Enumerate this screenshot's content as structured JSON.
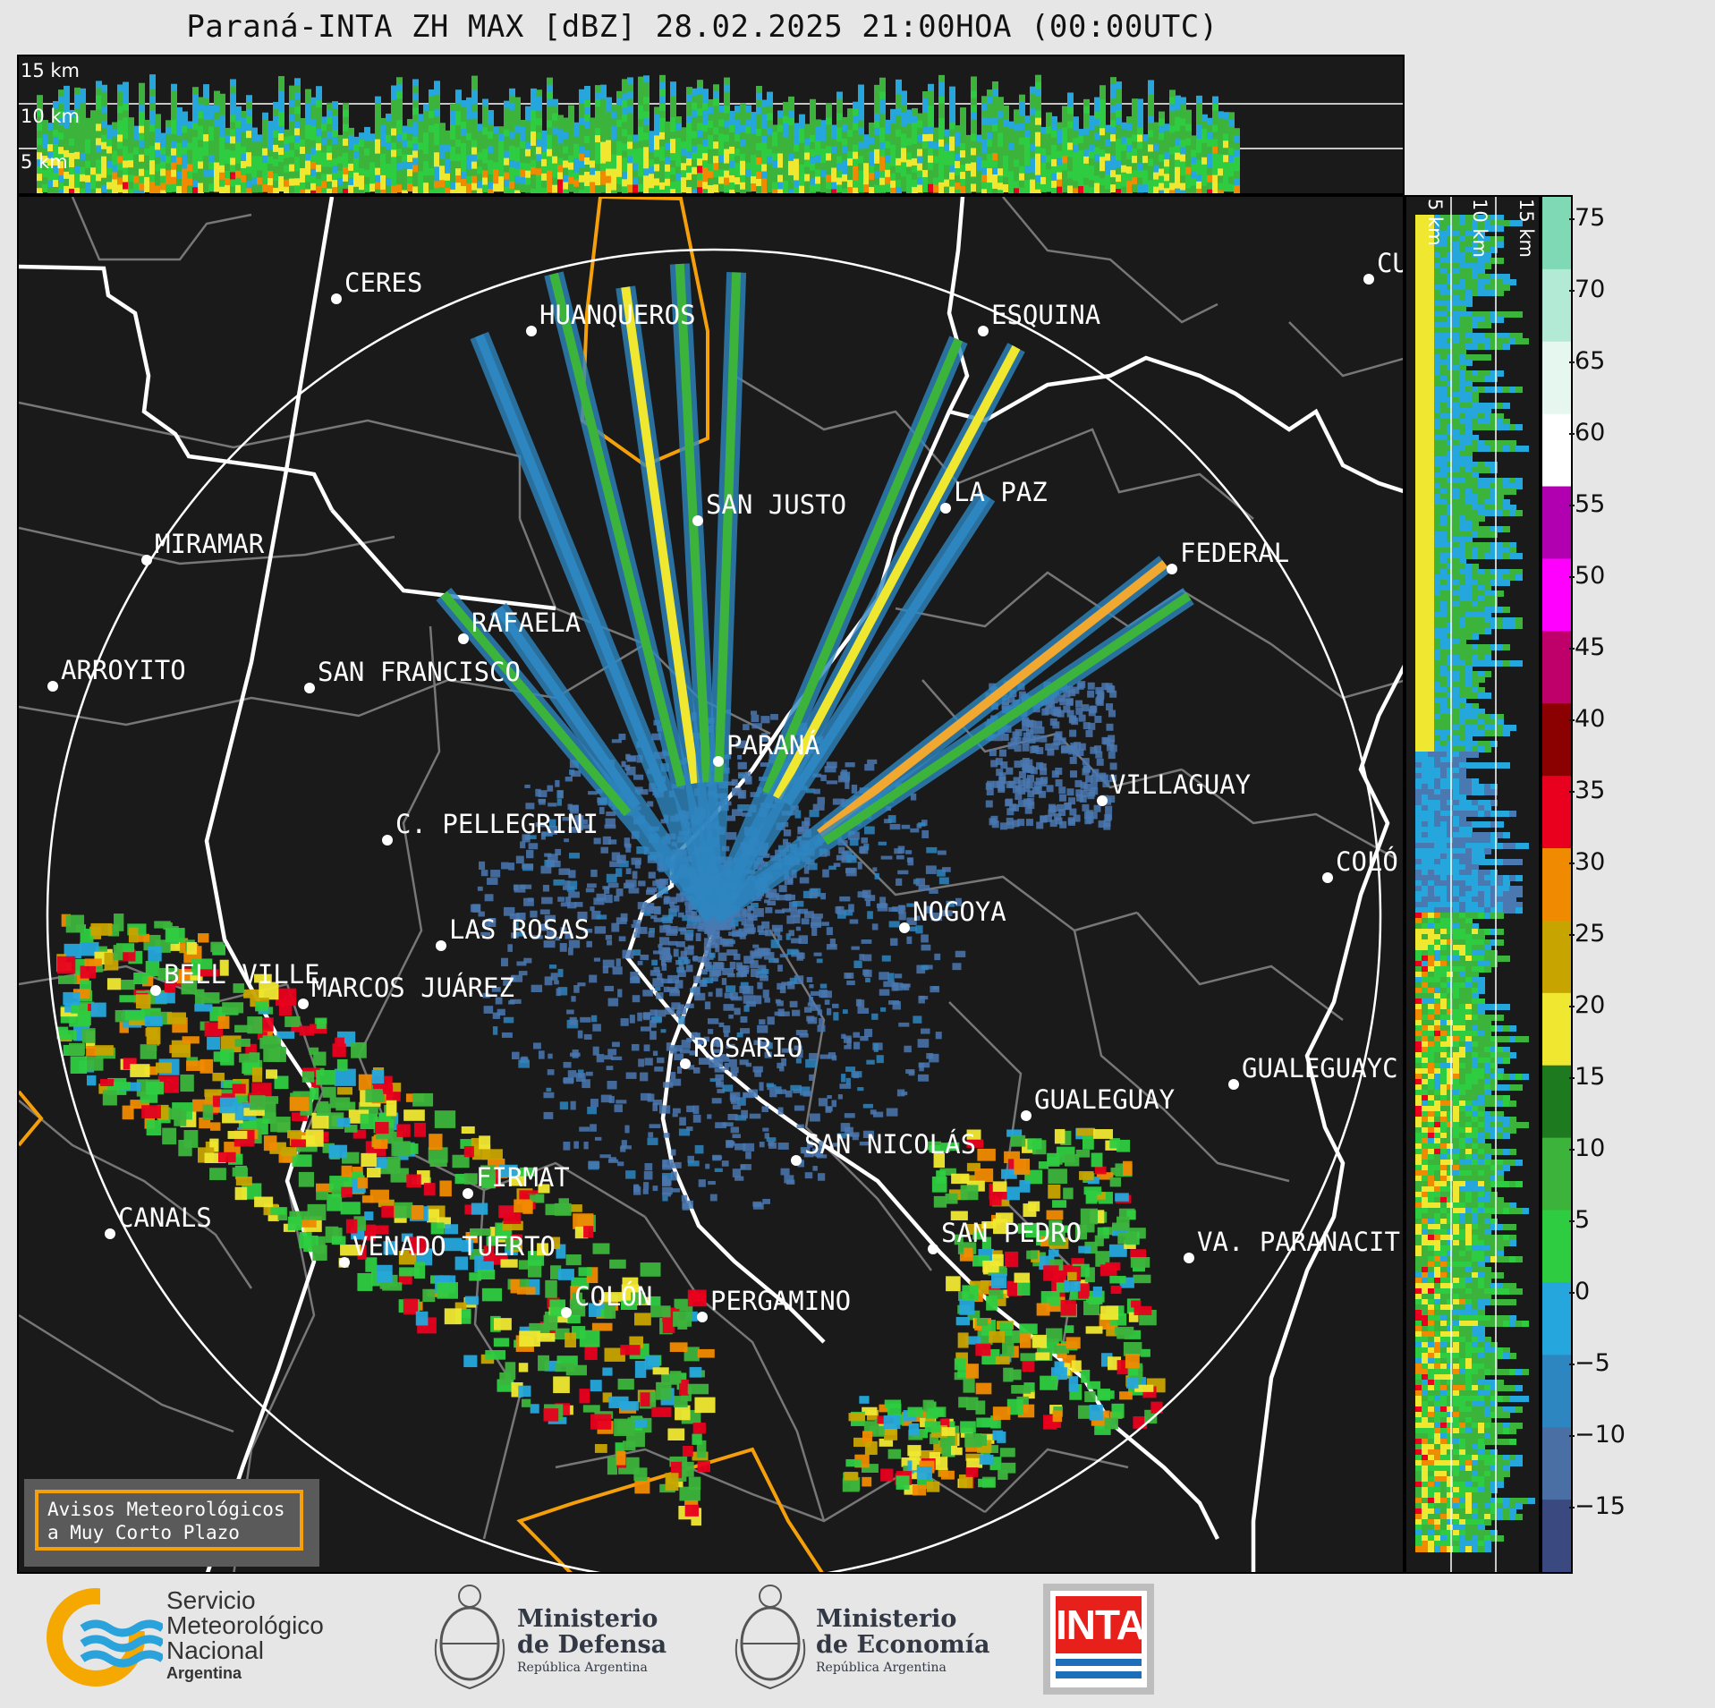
{
  "title": "Paraná-INTA ZH MAX [dBZ] 28.02.2025 21:00HOA (00:00UTC)",
  "top_panel": {
    "height_labels": [
      "15 km",
      "10 km",
      "5 km"
    ]
  },
  "side_panel": {
    "height_labels": [
      "5 km",
      "10 km",
      "15 km"
    ]
  },
  "colorbar": {
    "ticks": [
      "75",
      "70",
      "65",
      "60",
      "55",
      "50",
      "45",
      "40",
      "35",
      "30",
      "25",
      "20",
      "15",
      "10",
      "5",
      "0",
      "−5",
      "−10",
      "−15"
    ],
    "colors": [
      "#7fd9b4",
      "#b3ead6",
      "#e6f7f0",
      "#ffffff",
      "#b000b0",
      "#ff00ff",
      "#c0006a",
      "#8b0000",
      "#e8001e",
      "#f08a00",
      "#c8a400",
      "#f0e830",
      "#1e7a1e",
      "#3cb43c",
      "#2ecc40",
      "#25a6dc",
      "#2e86c1",
      "#4a6fa5",
      "#3a4a80"
    ]
  },
  "cities": [
    {
      "name": "CERES"
    },
    {
      "name": "HUANQUEROS"
    },
    {
      "name": "ESQUINA"
    },
    {
      "name": "CU"
    },
    {
      "name": "LA PAZ"
    },
    {
      "name": "SAN JUSTO"
    },
    {
      "name": "MIRAMAR"
    },
    {
      "name": "FEDERAL"
    },
    {
      "name": "RAFAELA"
    },
    {
      "name": "ARROYITO"
    },
    {
      "name": "SAN FRANCISCO"
    },
    {
      "name": "PARANÁ"
    },
    {
      "name": "VILLAGUAY"
    },
    {
      "name": "C. PELLEGRINI"
    },
    {
      "name": "COLÓ"
    },
    {
      "name": "NOGOYA"
    },
    {
      "name": "LAS ROSAS"
    },
    {
      "name": "BELL VILLE"
    },
    {
      "name": "MARCOS JUÁREZ"
    },
    {
      "name": "ROSARIO"
    },
    {
      "name": "GUALEGUAYC"
    },
    {
      "name": "GUALEGUAY"
    },
    {
      "name": "SAN NICOLÁS"
    },
    {
      "name": "FIRMAT"
    },
    {
      "name": "CANALS"
    },
    {
      "name": "SAN PEDRO"
    },
    {
      "name": "VENADO TUERTO"
    },
    {
      "name": "VA. PARANACIT"
    },
    {
      "name": "COLÓN"
    },
    {
      "name": "PERGAMINO"
    }
  ],
  "warning_box": {
    "line1": "Avisos Meteorológicos",
    "line2": "a Muy Corto Plazo"
  },
  "logos": {
    "smn_line1": "Servicio",
    "smn_line2": "Meteorológico",
    "smn_line3": "Nacional",
    "smn_line4": "Argentina",
    "defensa_line1": "Ministerio",
    "defensa_line2": "de Defensa",
    "defensa_line3": "República Argentina",
    "economia_line1": "Ministerio",
    "economia_line2": "de Economía",
    "economia_line3": "República Argentina",
    "inta": "INTA"
  }
}
